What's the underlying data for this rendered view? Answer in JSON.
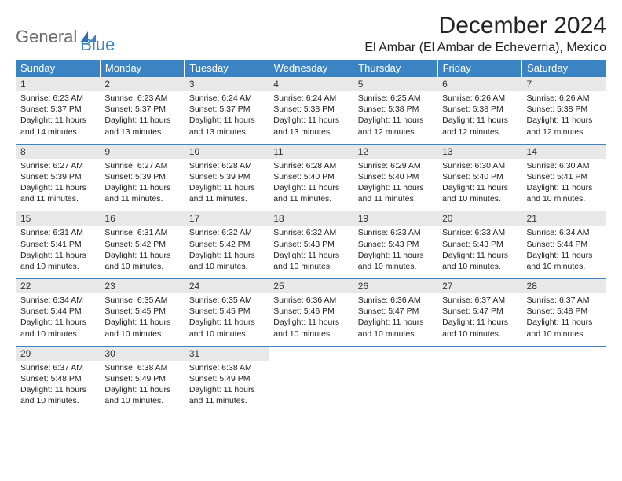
{
  "brand": {
    "word1": "General",
    "word2": "Blue"
  },
  "title": "December 2024",
  "location": "El Ambar (El Ambar de Echeverria), Mexico",
  "colors": {
    "header_bg": "#3a84c4",
    "header_fg": "#ffffff",
    "daynum_bg": "#e8e8e8",
    "rule": "#3a84c4",
    "text": "#222222",
    "logo_gray": "#6a6a6a",
    "logo_blue": "#3a84c4"
  },
  "typography": {
    "title_size_pt": 22,
    "location_size_pt": 12,
    "header_size_pt": 10,
    "body_size_pt": 8
  },
  "weekdays": [
    "Sunday",
    "Monday",
    "Tuesday",
    "Wednesday",
    "Thursday",
    "Friday",
    "Saturday"
  ],
  "weeks": [
    [
      {
        "n": 1,
        "sr": "6:23 AM",
        "ss": "5:37 PM",
        "dl": "11 hours and 14 minutes."
      },
      {
        "n": 2,
        "sr": "6:23 AM",
        "ss": "5:37 PM",
        "dl": "11 hours and 13 minutes."
      },
      {
        "n": 3,
        "sr": "6:24 AM",
        "ss": "5:37 PM",
        "dl": "11 hours and 13 minutes."
      },
      {
        "n": 4,
        "sr": "6:24 AM",
        "ss": "5:38 PM",
        "dl": "11 hours and 13 minutes."
      },
      {
        "n": 5,
        "sr": "6:25 AM",
        "ss": "5:38 PM",
        "dl": "11 hours and 12 minutes."
      },
      {
        "n": 6,
        "sr": "6:26 AM",
        "ss": "5:38 PM",
        "dl": "11 hours and 12 minutes."
      },
      {
        "n": 7,
        "sr": "6:26 AM",
        "ss": "5:38 PM",
        "dl": "11 hours and 12 minutes."
      }
    ],
    [
      {
        "n": 8,
        "sr": "6:27 AM",
        "ss": "5:39 PM",
        "dl": "11 hours and 11 minutes."
      },
      {
        "n": 9,
        "sr": "6:27 AM",
        "ss": "5:39 PM",
        "dl": "11 hours and 11 minutes."
      },
      {
        "n": 10,
        "sr": "6:28 AM",
        "ss": "5:39 PM",
        "dl": "11 hours and 11 minutes."
      },
      {
        "n": 11,
        "sr": "6:28 AM",
        "ss": "5:40 PM",
        "dl": "11 hours and 11 minutes."
      },
      {
        "n": 12,
        "sr": "6:29 AM",
        "ss": "5:40 PM",
        "dl": "11 hours and 11 minutes."
      },
      {
        "n": 13,
        "sr": "6:30 AM",
        "ss": "5:40 PM",
        "dl": "11 hours and 10 minutes."
      },
      {
        "n": 14,
        "sr": "6:30 AM",
        "ss": "5:41 PM",
        "dl": "11 hours and 10 minutes."
      }
    ],
    [
      {
        "n": 15,
        "sr": "6:31 AM",
        "ss": "5:41 PM",
        "dl": "11 hours and 10 minutes."
      },
      {
        "n": 16,
        "sr": "6:31 AM",
        "ss": "5:42 PM",
        "dl": "11 hours and 10 minutes."
      },
      {
        "n": 17,
        "sr": "6:32 AM",
        "ss": "5:42 PM",
        "dl": "11 hours and 10 minutes."
      },
      {
        "n": 18,
        "sr": "6:32 AM",
        "ss": "5:43 PM",
        "dl": "11 hours and 10 minutes."
      },
      {
        "n": 19,
        "sr": "6:33 AM",
        "ss": "5:43 PM",
        "dl": "11 hours and 10 minutes."
      },
      {
        "n": 20,
        "sr": "6:33 AM",
        "ss": "5:43 PM",
        "dl": "11 hours and 10 minutes."
      },
      {
        "n": 21,
        "sr": "6:34 AM",
        "ss": "5:44 PM",
        "dl": "11 hours and 10 minutes."
      }
    ],
    [
      {
        "n": 22,
        "sr": "6:34 AM",
        "ss": "5:44 PM",
        "dl": "11 hours and 10 minutes."
      },
      {
        "n": 23,
        "sr": "6:35 AM",
        "ss": "5:45 PM",
        "dl": "11 hours and 10 minutes."
      },
      {
        "n": 24,
        "sr": "6:35 AM",
        "ss": "5:45 PM",
        "dl": "11 hours and 10 minutes."
      },
      {
        "n": 25,
        "sr": "6:36 AM",
        "ss": "5:46 PM",
        "dl": "11 hours and 10 minutes."
      },
      {
        "n": 26,
        "sr": "6:36 AM",
        "ss": "5:47 PM",
        "dl": "11 hours and 10 minutes."
      },
      {
        "n": 27,
        "sr": "6:37 AM",
        "ss": "5:47 PM",
        "dl": "11 hours and 10 minutes."
      },
      {
        "n": 28,
        "sr": "6:37 AM",
        "ss": "5:48 PM",
        "dl": "11 hours and 10 minutes."
      }
    ],
    [
      {
        "n": 29,
        "sr": "6:37 AM",
        "ss": "5:48 PM",
        "dl": "11 hours and 10 minutes."
      },
      {
        "n": 30,
        "sr": "6:38 AM",
        "ss": "5:49 PM",
        "dl": "11 hours and 10 minutes."
      },
      {
        "n": 31,
        "sr": "6:38 AM",
        "ss": "5:49 PM",
        "dl": "11 hours and 11 minutes."
      },
      null,
      null,
      null,
      null
    ]
  ],
  "labels": {
    "sunrise": "Sunrise:",
    "sunset": "Sunset:",
    "daylight": "Daylight:"
  }
}
